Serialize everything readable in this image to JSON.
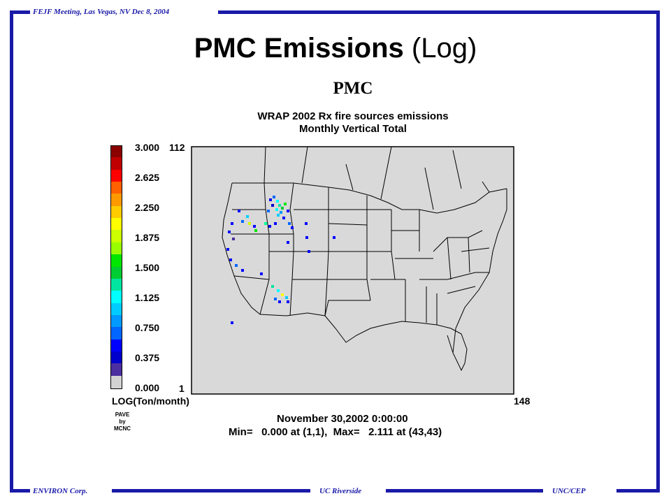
{
  "header": {
    "meeting": "FEJF Meeting, Las Vegas, NV Dec 8, 2004"
  },
  "footer": {
    "left": "ENVIRON Corp.",
    "center": "UC Riverside",
    "right": "UNC/CEP"
  },
  "slide_title": {
    "bold": "PMC Emissions",
    "rest": " (Log)"
  },
  "figure": {
    "species": "PMC",
    "title_line1": "WRAP 2002 Rx fire sources emissions",
    "title_line2": "Monthly Vertical Total",
    "grid_corner_x": "1",
    "grid_corner_y": "112",
    "grid_max_x": "148",
    "colorbar": {
      "unit": "LOG(Ton/month)",
      "labels": [
        "3.000",
        "2.625",
        "2.250",
        "1.875",
        "1.500",
        "1.125",
        "0.750",
        "0.375",
        "0.000"
      ],
      "colors": [
        "#8b0000",
        "#c00000",
        "#ff0000",
        "#ff6000",
        "#ff9900",
        "#ffcc00",
        "#ffff00",
        "#ccff00",
        "#99ff00",
        "#00e600",
        "#00cc33",
        "#00e6a0",
        "#00ffff",
        "#00ccff",
        "#0099ff",
        "#0066ff",
        "#0000ff",
        "#0000cc",
        "#4b2ea0",
        "#d3d3d3"
      ]
    },
    "credit": [
      "PAVE",
      "by",
      "MCNC"
    ],
    "date": "November 30,2002 0:00:00",
    "minmax": "Min=   0.000 at (1,1),  Max=   2.111 at (43,43)"
  }
}
